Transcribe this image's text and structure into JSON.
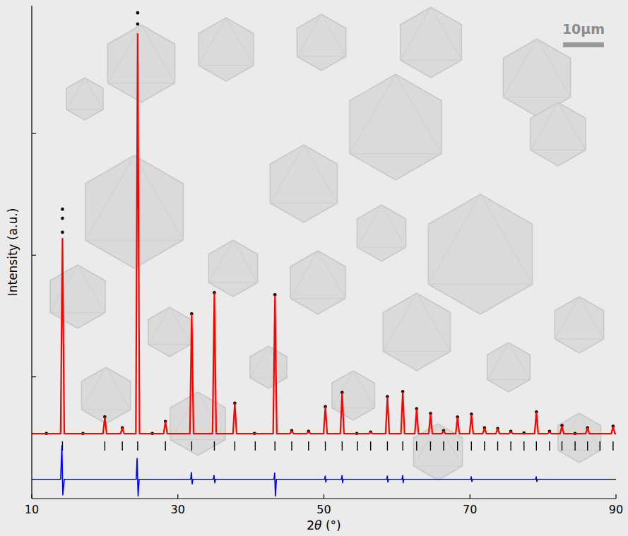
{
  "chart_data": {
    "type": "line",
    "x_label": "2θ (°)",
    "y_label": "Intensity (a.u.)",
    "annotations": [
      "10μm"
    ],
    "xlim": [
      10,
      90
    ],
    "xticks": [
      10,
      30,
      50,
      70,
      90
    ],
    "ylim": [
      0,
      4.05
    ],
    "yticks": [
      1,
      2,
      3
    ],
    "tick_labels": "x",
    "grid": false,
    "series": [
      {
        "type": "scatter",
        "color": "#000000",
        "marker": "circle",
        "x": [
          12,
          14.2,
          14.2,
          14.2,
          17,
          20,
          22.4,
          24.5,
          24.5,
          26.5,
          28.3,
          31.9,
          35,
          37.8,
          40.5,
          43.3,
          45.6,
          47.9,
          50.2,
          52.5,
          54.5,
          56.4,
          58.7,
          60.8,
          62.7,
          64.6,
          66.4,
          68.3,
          70.2,
          72,
          73.8,
          75.6,
          77.4,
          79.1,
          80.9,
          82.6,
          84.4,
          86.1,
          89.6
        ],
        "values": [
          0.535,
          2.378,
          2.303,
          2.188,
          0.535,
          0.672,
          0.582,
          3.991,
          3.899,
          0.535,
          0.634,
          1.519,
          1.692,
          0.784,
          0.535,
          1.675,
          0.558,
          0.552,
          0.755,
          0.872,
          0.535,
          0.547,
          0.838,
          0.879,
          0.738,
          0.699,
          0.558,
          0.67,
          0.693,
          0.582,
          0.576,
          0.552,
          0.54,
          0.712,
          0.552,
          0.6,
          0.535,
          0.582,
          0.594
        ]
      },
      {
        "type": "line",
        "color": "#ff0000",
        "line_style": "solid",
        "x": [
          10,
          13.95,
          14.2,
          14.45,
          19.75,
          20,
          20.25,
          22.15,
          22.4,
          22.65,
          24.25,
          24.5,
          24.75,
          28.05,
          28.3,
          28.55,
          31.65,
          31.9,
          32.15,
          34.75,
          35,
          35.25,
          37.55,
          37.8,
          38.05,
          43.05,
          43.3,
          43.55,
          45.35,
          45.6,
          45.85,
          47.65,
          47.9,
          48.15,
          49.95,
          50.2,
          50.45,
          52.25,
          52.5,
          52.75,
          56.15,
          56.4,
          56.65,
          58.45,
          58.7,
          58.95,
          60.55,
          60.8,
          61.05,
          62.45,
          62.7,
          62.95,
          64.35,
          64.6,
          64.85,
          66.15,
          66.4,
          66.65,
          68.05,
          68.3,
          68.55,
          69.95,
          70.2,
          70.45,
          71.75,
          72,
          72.25,
          73.55,
          73.8,
          74.05,
          75.35,
          75.6,
          75.85,
          78.85,
          79.1,
          79.35,
          80.65,
          80.9,
          81.15,
          82.35,
          82.6,
          82.85,
          85.85,
          86.1,
          86.35,
          89.35,
          89.6,
          89.85,
          90
        ],
        "values": [
          0.533,
          0.533,
          2.135,
          0.533,
          0.533,
          0.666,
          0.533,
          0.533,
          0.579,
          0.533,
          0.533,
          3.818,
          0.533,
          0.533,
          0.631,
          0.533,
          0.533,
          1.513,
          0.533,
          0.533,
          1.686,
          0.533,
          0.533,
          0.781,
          0.533,
          0.533,
          1.663,
          0.533,
          0.533,
          0.556,
          0.533,
          0.533,
          0.55,
          0.533,
          0.533,
          0.752,
          0.533,
          0.533,
          0.867,
          0.533,
          0.533,
          0.545,
          0.533,
          0.533,
          0.833,
          0.533,
          0.533,
          0.873,
          0.533,
          0.533,
          0.735,
          0.533,
          0.533,
          0.695,
          0.533,
          0.533,
          0.556,
          0.533,
          0.533,
          0.666,
          0.533,
          0.533,
          0.689,
          0.533,
          0.533,
          0.579,
          0.533,
          0.533,
          0.573,
          0.533,
          0.533,
          0.55,
          0.533,
          0.533,
          0.706,
          0.533,
          0.533,
          0.55,
          0.533,
          0.533,
          0.597,
          0.533,
          0.533,
          0.579,
          0.533,
          0.533,
          0.59,
          0.533,
          0.533
        ]
      },
      {
        "type": "line",
        "color": "#0000ff",
        "line_style": "solid",
        "x": [
          10,
          13.95,
          14.12,
          14.25,
          14.45,
          24.3,
          24.42,
          24.56,
          24.7,
          31.75,
          31.86,
          31.96,
          32.05,
          34.85,
          34.96,
          35.06,
          35.15,
          43.15,
          43.26,
          43.36,
          43.5,
          50.1,
          50.18,
          50.26,
          50.35,
          52.4,
          52.48,
          52.56,
          52.65,
          58.6,
          58.68,
          58.76,
          58.85,
          60.7,
          60.78,
          60.86,
          60.95,
          70.1,
          70.18,
          70.26,
          70.35,
          79.0,
          79.08,
          79.16,
          79.25,
          90
        ],
        "values": [
          0.158,
          0.158,
          0.435,
          0.03,
          0.158,
          0.158,
          0.331,
          0.02,
          0.158,
          0.158,
          0.215,
          0.12,
          0.158,
          0.158,
          0.19,
          0.13,
          0.158,
          0.158,
          0.21,
          0.02,
          0.158,
          0.158,
          0.185,
          0.135,
          0.158,
          0.158,
          0.19,
          0.13,
          0.158,
          0.158,
          0.185,
          0.135,
          0.158,
          0.158,
          0.19,
          0.13,
          0.158,
          0.158,
          0.18,
          0.14,
          0.158,
          0.158,
          0.18,
          0.14,
          0.158,
          0.158
        ]
      }
    ],
    "reflections": [
      14.2,
      20.0,
      22.4,
      24.5,
      28.3,
      31.9,
      35.0,
      37.8,
      40.6,
      43.3,
      45.6,
      47.9,
      50.2,
      52.5,
      54.6,
      56.4,
      58.7,
      60.8,
      62.7,
      64.6,
      66.4,
      68.3,
      70.2,
      72.0,
      73.8,
      75.6,
      77.4,
      79.1,
      80.9,
      82.6,
      84.4,
      86.1,
      87.8,
      89.6
    ]
  }
}
